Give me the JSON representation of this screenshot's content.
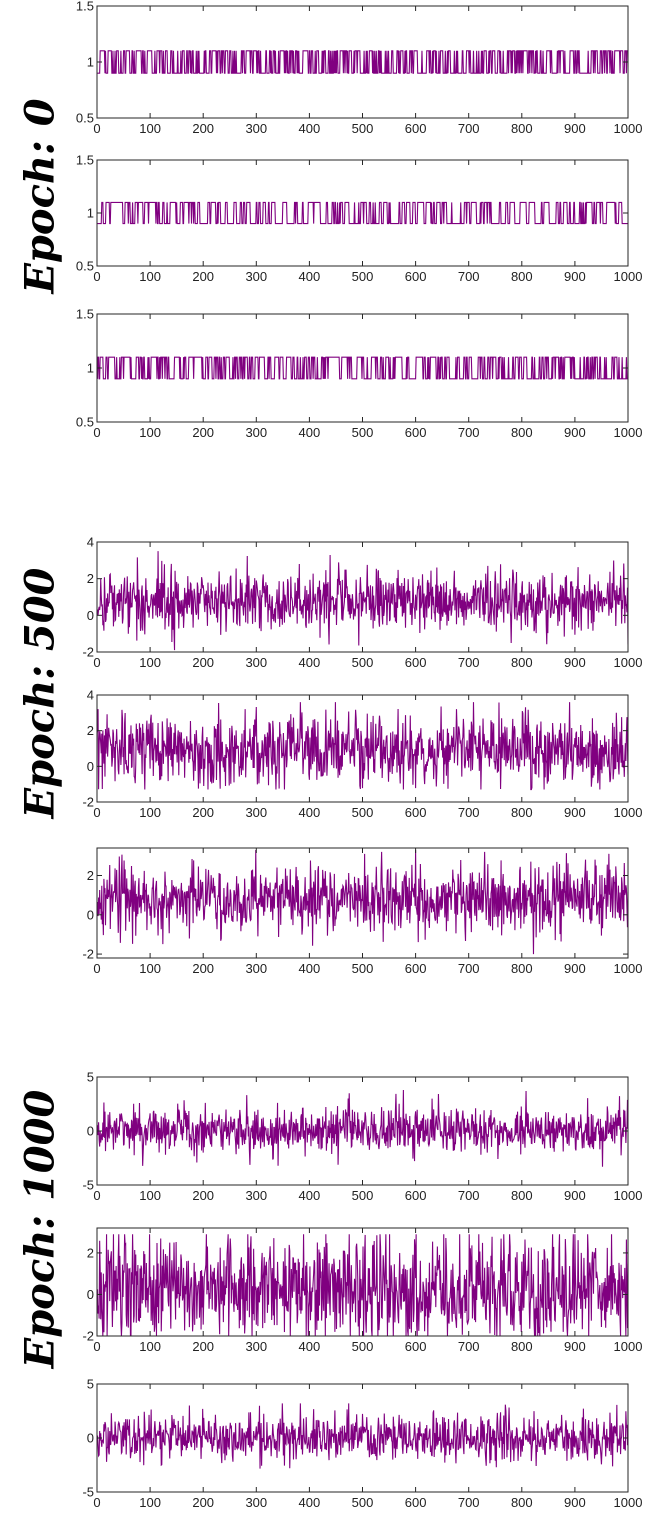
{
  "colors": {
    "series": "#800080",
    "axis": "#262626",
    "background": "#ffffff"
  },
  "groups": [
    {
      "label": "Epoch: 0"
    },
    {
      "label": "Epoch: 500"
    },
    {
      "label": "Epoch: 1000"
    }
  ],
  "chart_data": [
    {
      "type": "line",
      "group": 0,
      "signal": "binary",
      "low": 0.9,
      "high": 1.1,
      "seed": 11,
      "switch_prob": 0.35,
      "xlim": [
        0,
        1000
      ],
      "ylim": [
        0.5,
        1.5
      ],
      "xticks": [
        0,
        100,
        200,
        300,
        400,
        500,
        600,
        700,
        800,
        900,
        1000
      ],
      "yticks": [
        0.5,
        1,
        1.5
      ],
      "n_points": 1000
    },
    {
      "type": "line",
      "group": 0,
      "signal": "binary",
      "low": 0.9,
      "high": 1.1,
      "seed": 23,
      "switch_prob": 0.2,
      "xlim": [
        0,
        1000
      ],
      "ylim": [
        0.5,
        1.5
      ],
      "xticks": [
        0,
        100,
        200,
        300,
        400,
        500,
        600,
        700,
        800,
        900,
        1000
      ],
      "yticks": [
        0.5,
        1,
        1.5
      ],
      "n_points": 1000
    },
    {
      "type": "line",
      "group": 0,
      "signal": "binary",
      "low": 0.9,
      "high": 1.1,
      "seed": 37,
      "switch_prob": 0.3,
      "xlim": [
        0,
        1000
      ],
      "ylim": [
        0.5,
        1.5
      ],
      "xticks": [
        0,
        100,
        200,
        300,
        400,
        500,
        600,
        700,
        800,
        900,
        1000
      ],
      "yticks": [
        0.5,
        1,
        1.5
      ],
      "n_points": 1000
    },
    {
      "type": "line",
      "group": 1,
      "signal": "noise",
      "mean": 0.8,
      "std": 0.85,
      "min": -1.9,
      "max": 3.5,
      "seed": 41,
      "xlim": [
        0,
        1000
      ],
      "ylim": [
        -2,
        4
      ],
      "xticks": [
        0,
        100,
        200,
        300,
        400,
        500,
        600,
        700,
        800,
        900,
        1000
      ],
      "yticks": [
        -2,
        0,
        2,
        4
      ],
      "n_points": 1000
    },
    {
      "type": "line",
      "group": 1,
      "signal": "noise",
      "mean": 0.9,
      "std": 1.0,
      "min": -1.3,
      "max": 3.6,
      "seed": 53,
      "xlim": [
        0,
        1000
      ],
      "ylim": [
        -2,
        4
      ],
      "xticks": [
        0,
        100,
        200,
        300,
        400,
        500,
        600,
        700,
        800,
        900,
        1000
      ],
      "yticks": [
        -2,
        0,
        2,
        4
      ],
      "n_points": 1000
    },
    {
      "type": "line",
      "group": 1,
      "signal": "noise",
      "mean": 0.8,
      "std": 0.85,
      "min": -2.0,
      "max": 3.3,
      "seed": 67,
      "xlim": [
        0,
        1000
      ],
      "ylim": [
        -2.2,
        3.4
      ],
      "xticks": [
        0,
        100,
        200,
        300,
        400,
        500,
        600,
        700,
        800,
        900,
        1000
      ],
      "yticks": [
        -2,
        0,
        2
      ],
      "n_points": 1000
    },
    {
      "type": "line",
      "group": 2,
      "signal": "noise",
      "mean": 0.1,
      "std": 1.1,
      "min": -3.8,
      "max": 3.8,
      "seed": 71,
      "xlim": [
        0,
        1000
      ],
      "ylim": [
        -5,
        5
      ],
      "xticks": [
        0,
        100,
        200,
        300,
        400,
        500,
        600,
        700,
        800,
        900,
        1000
      ],
      "yticks": [
        -5,
        0,
        5
      ],
      "n_points": 1000
    },
    {
      "type": "line",
      "group": 2,
      "signal": "noise",
      "mean": 0.3,
      "std": 1.35,
      "min": -2.0,
      "max": 2.9,
      "seed": 83,
      "xlim": [
        0,
        1000
      ],
      "ylim": [
        -2,
        3.2
      ],
      "xticks": [
        0,
        100,
        200,
        300,
        400,
        500,
        600,
        700,
        800,
        900,
        1000
      ],
      "yticks": [
        -2,
        0,
        2
      ],
      "n_points": 1000
    },
    {
      "type": "line",
      "group": 2,
      "signal": "noise",
      "mean": 0.0,
      "std": 1.1,
      "min": -4.2,
      "max": 3.2,
      "seed": 97,
      "xlim": [
        0,
        1000
      ],
      "ylim": [
        -5,
        5
      ],
      "xticks": [
        0,
        100,
        200,
        300,
        400,
        500,
        600,
        700,
        800,
        900,
        1000
      ],
      "yticks": [
        -5,
        0,
        5
      ],
      "n_points": 1000
    }
  ]
}
